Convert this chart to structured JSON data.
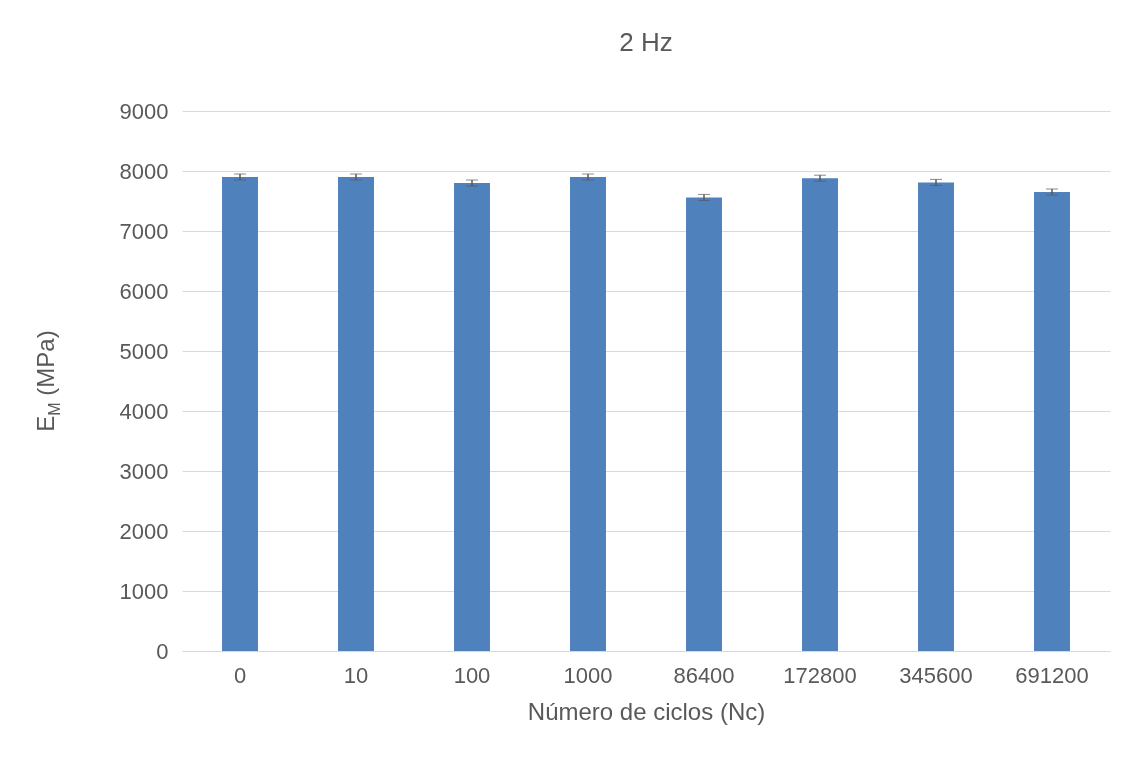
{
  "chart_data": {
    "type": "bar",
    "title": "2 Hz",
    "xlabel": "Número de ciclos (Nc)",
    "ylabel": "E$_{M}$ (MPa)",
    "categories": [
      "0",
      "10",
      "100",
      "1000",
      "86400",
      "172800",
      "345600",
      "691200"
    ],
    "values": [
      7900,
      7900,
      7800,
      7900,
      7560,
      7880,
      7810,
      7650
    ],
    "errors": [
      50,
      50,
      50,
      50,
      50,
      50,
      50,
      50
    ],
    "color": "#4f81bd",
    "ylim": [
      0,
      9000
    ],
    "yticks": [
      0,
      1000,
      2000,
      3000,
      4000,
      5000,
      6000,
      7000,
      8000,
      9000
    ],
    "grid": "y"
  }
}
